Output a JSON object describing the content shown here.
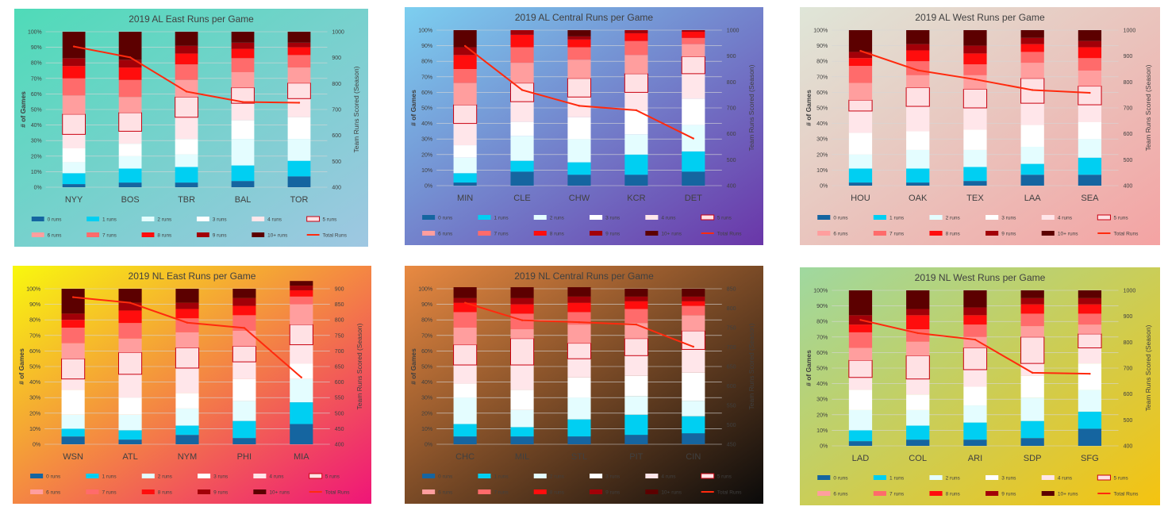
{
  "legend": {
    "labels": [
      "0 runs",
      "1 runs",
      "2 runs",
      "3 runs",
      "4 runs",
      "5 runs",
      "6 runs",
      "7 runs",
      "8 runs",
      "9 runs",
      "10+ runs",
      "Total Runs"
    ],
    "colors": [
      "#1565a0",
      "#00cff2",
      "#e4fdff",
      "#ffffff",
      "#ffe6ea",
      "#ffe1e4",
      "#ff9e9e",
      "#ff6b6b",
      "#ff0d0d",
      "#a20008",
      "#5c0000"
    ],
    "line_color": "#ff2a0e",
    "highlight_border": "#c80010"
  },
  "axes": {
    "ylabel": "# of Games",
    "y2label": "Team Runs Scored (Season)",
    "pct_ticks": [
      "0%",
      "10%",
      "20%",
      "30%",
      "40%",
      "50%",
      "60%",
      "70%",
      "80%",
      "90%",
      "100%"
    ]
  },
  "chart_data": [
    {
      "type": "bar",
      "title": "2019 AL East Runs per Game",
      "background": [
        "#4fdbb8",
        "#9fc7e2"
      ],
      "categories": [
        "NYY",
        "BOS",
        "TBR",
        "BAL",
        "TOR"
      ],
      "stack_percent": [
        [
          2,
          7,
          7,
          9,
          9,
          13,
          12,
          11,
          8,
          5,
          17
        ],
        [
          3,
          9,
          8,
          8,
          8,
          12,
          10,
          11,
          8,
          5,
          18
        ],
        [
          3,
          10,
          8,
          10,
          14,
          13,
          11,
          10,
          7,
          5,
          9
        ],
        [
          4,
          10,
          17,
          12,
          11,
          10,
          10,
          9,
          6,
          4,
          7
        ],
        [
          7,
          10,
          14,
          14,
          12,
          10,
          10,
          8,
          5,
          3,
          7
        ]
      ],
      "y2ticks": [
        "400",
        "500",
        "600",
        "700",
        "800",
        "900",
        "1000"
      ],
      "y2lim": [
        400,
        1000
      ],
      "total_runs": [
        943,
        901,
        769,
        729,
        726
      ]
    },
    {
      "type": "bar",
      "title": "2019 AL Central Runs per Game",
      "background": [
        "#7ccff0",
        "#6a36a8"
      ],
      "categories": [
        "MIN",
        "CLE",
        "CHW",
        "KCR",
        "DET"
      ],
      "stack_percent": [
        [
          2,
          6,
          10,
          8,
          14,
          12,
          14,
          9,
          9,
          5,
          11
        ],
        [
          9,
          7,
          16,
          9,
          13,
          12,
          13,
          10,
          8,
          3,
          0
        ],
        [
          7,
          8,
          15,
          14,
          13,
          12,
          12,
          8,
          5,
          2,
          4
        ],
        [
          7,
          13,
          13,
          15,
          12,
          12,
          12,
          9,
          5,
          2,
          0
        ],
        [
          9,
          13,
          17,
          17,
          16,
          11,
          8,
          4,
          4,
          1,
          0
        ]
      ],
      "y2ticks": [
        "400",
        "500",
        "600",
        "700",
        "800",
        "900",
        "1000"
      ],
      "y2lim": [
        400,
        1000
      ],
      "total_runs": [
        939,
        769,
        708,
        691,
        582
      ]
    },
    {
      "type": "bar",
      "title": "2019 AL West Runs per Game",
      "background": [
        "#dfe6d8",
        "#f4a3a3"
      ],
      "categories": [
        "HOU",
        "OAK",
        "TEX",
        "LAA",
        "SEA"
      ],
      "stack_percent": [
        [
          2,
          9,
          9,
          14,
          14,
          7,
          11,
          11,
          5,
          4,
          14
        ],
        [
          2,
          9,
          12,
          12,
          16,
          12,
          8,
          9,
          7,
          4,
          9
        ],
        [
          3,
          9,
          11,
          13,
          14,
          12,
          9,
          7,
          7,
          5,
          10
        ],
        [
          7,
          7,
          11,
          14,
          14,
          16,
          10,
          7,
          5,
          4,
          5
        ],
        [
          7,
          11,
          12,
          11,
          11,
          12,
          10,
          8,
          7,
          4,
          7
        ]
      ],
      "y2ticks": [
        "400",
        "500",
        "600",
        "700",
        "800",
        "900",
        "1000"
      ],
      "y2lim": [
        400,
        1000
      ],
      "total_runs": [
        920,
        845,
        810,
        769,
        758
      ]
    },
    {
      "type": "bar",
      "title": "2019 NL East Runs per Game",
      "background": [
        "#f8f80e",
        "#ef1578"
      ],
      "categories": [
        "WSN",
        "ATL",
        "NYM",
        "PHI",
        "MIA"
      ],
      "stack_percent": [
        [
          5,
          5,
          9,
          16,
          7,
          13,
          10,
          10,
          5,
          4,
          16
        ],
        [
          3,
          6,
          10,
          11,
          15,
          14,
          9,
          10,
          8,
          5,
          9
        ],
        [
          6,
          6,
          11,
          10,
          16,
          13,
          10,
          9,
          6,
          4,
          9
        ],
        [
          4,
          11,
          13,
          14,
          11,
          10,
          10,
          10,
          6,
          5,
          6
        ],
        [
          13,
          14,
          15,
          10,
          12,
          13,
          13,
          5,
          4,
          3,
          3
        ]
      ],
      "y2ticks": [
        "400",
        "450",
        "500",
        "550",
        "600",
        "650",
        "700",
        "750",
        "800",
        "850",
        "900"
      ],
      "y2lim": [
        400,
        900
      ],
      "total_runs": [
        873,
        855,
        791,
        774,
        615
      ]
    },
    {
      "type": "bar",
      "title": "2019 NL Central Runs per Game",
      "background": [
        "#e98a42",
        "#0a0a0a"
      ],
      "categories": [
        "CHC",
        "MIL",
        "STL",
        "PIT",
        "CIN"
      ],
      "stack_percent": [
        [
          5,
          8,
          17,
          9,
          12,
          13,
          11,
          10,
          6,
          3,
          7
        ],
        [
          5,
          6,
          11,
          13,
          16,
          17,
          6,
          10,
          6,
          4,
          7
        ],
        [
          5,
          11,
          14,
          13,
          12,
          10,
          12,
          8,
          6,
          4,
          6
        ],
        [
          6,
          13,
          12,
          13,
          13,
          11,
          10,
          9,
          5,
          3,
          5
        ],
        [
          7,
          11,
          10,
          18,
          15,
          12,
          10,
          6,
          3,
          3,
          5
        ]
      ],
      "y2ticks": [
        "450",
        "500",
        "550",
        "600",
        "650",
        "700",
        "750",
        "800",
        "850"
      ],
      "y2lim": [
        450,
        850
      ],
      "total_runs": [
        814,
        769,
        764,
        758,
        701
      ]
    },
    {
      "type": "bar",
      "title": "2019 NL West Runs per Game",
      "background": [
        "#9fd8a0",
        "#f5c310"
      ],
      "categories": [
        "LAD",
        "COL",
        "ARI",
        "SDP",
        "SFG"
      ],
      "stack_percent": [
        [
          3,
          7,
          13,
          13,
          8,
          11,
          8,
          10,
          5,
          6,
          16
        ],
        [
          4,
          9,
          10,
          10,
          10,
          15,
          9,
          8,
          9,
          4,
          12
        ],
        [
          4,
          11,
          11,
          12,
          11,
          14,
          7,
          8,
          6,
          5,
          11
        ],
        [
          5,
          11,
          15,
          14,
          8,
          17,
          7,
          8,
          6,
          4,
          5
        ],
        [
          11,
          11,
          14,
          17,
          10,
          9,
          6,
          7,
          6,
          4,
          5
        ]
      ],
      "y2ticks": [
        "400",
        "500",
        "600",
        "700",
        "800",
        "900",
        "1000"
      ],
      "y2lim": [
        400,
        1000
      ],
      "total_runs": [
        886,
        835,
        810,
        682,
        678
      ]
    }
  ]
}
